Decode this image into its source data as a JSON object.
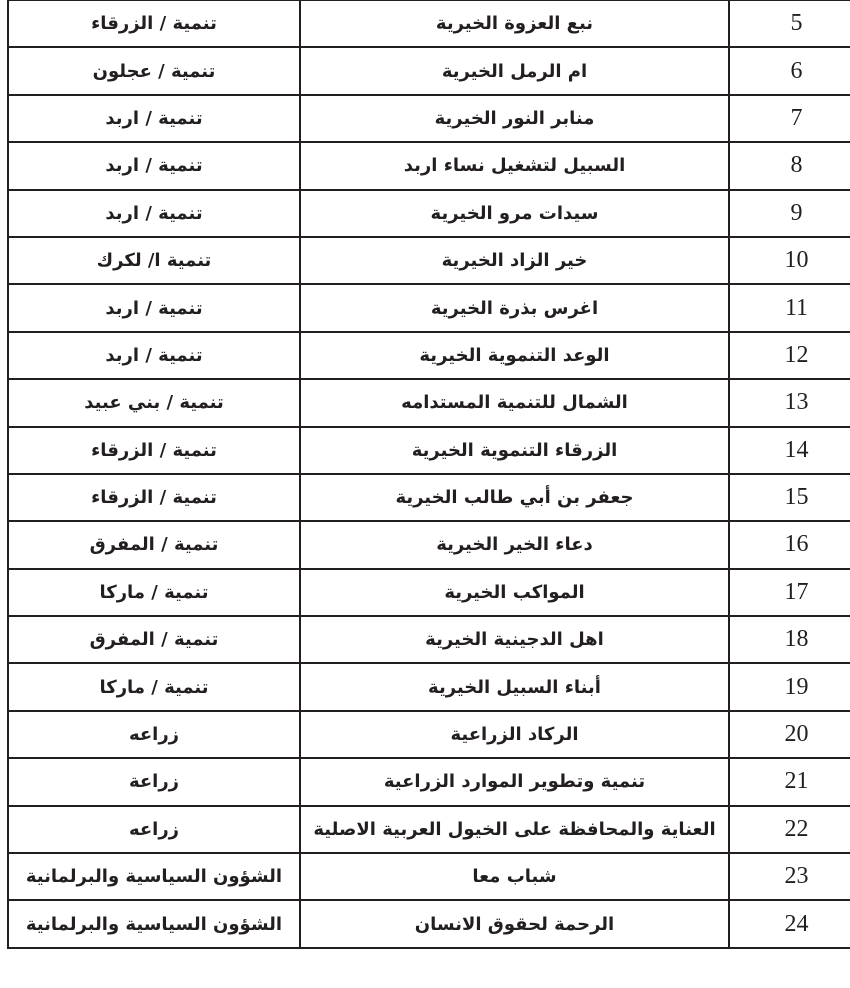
{
  "table": {
    "rows": [
      {
        "num": "5",
        "name": "نبع العزوة الخيرية",
        "category": "تنمية / الزرقاء"
      },
      {
        "num": "6",
        "name": "ام الرمل الخيرية",
        "category": "تنمية / عجلون"
      },
      {
        "num": "7",
        "name": "منابر النور الخيرية",
        "category": "تنمية / اربد"
      },
      {
        "num": "8",
        "name": "السبيل لتشغيل نساء اربد",
        "category": "تنمية / اربد"
      },
      {
        "num": "9",
        "name": "سيدات مرو الخيرية",
        "category": "تنمية / اربد"
      },
      {
        "num": "10",
        "name": "خير الزاد الخيرية",
        "category": "تنمية ا/ لكرك"
      },
      {
        "num": "11",
        "name": "اغرس بذرة الخيرية",
        "category": "تنمية / اربد"
      },
      {
        "num": "12",
        "name": "الوعد التنموية الخيرية",
        "category": "تنمية / اربد"
      },
      {
        "num": "13",
        "name": "الشمال للتنمية المستدامه",
        "category": "تنمية / بني عبيد"
      },
      {
        "num": "14",
        "name": "الزرقاء التنموية الخيرية",
        "category": "تنمية / الزرقاء"
      },
      {
        "num": "15",
        "name": "جعفر بن أبي طالب الخيرية",
        "category": "تنمية / الزرقاء"
      },
      {
        "num": "16",
        "name": "دعاء الخير الخيرية",
        "category": "تنمية / المفرق"
      },
      {
        "num": "17",
        "name": "المواكب الخيرية",
        "category": "تنمية / ماركا"
      },
      {
        "num": "18",
        "name": "اهل الدجينية الخيرية",
        "category": "تنمية / المفرق"
      },
      {
        "num": "19",
        "name": "أبناء السبيل الخيرية",
        "category": "تنمية / ماركا"
      },
      {
        "num": "20",
        "name": "الركاد الزراعية",
        "category": "زراعه"
      },
      {
        "num": "21",
        "name": "تنمية وتطوير الموارد الزراعية",
        "category": "زراعة"
      },
      {
        "num": "22",
        "name": "العناية والمحافظة على الخيول العربية الاصلية",
        "category": "زراعه"
      },
      {
        "num": "23",
        "name": "شباب معا",
        "category": "الشؤون السياسية والبرلمانية"
      },
      {
        "num": "24",
        "name": "الرحمة لحقوق الانسان",
        "category": "الشؤون السياسية والبرلمانية"
      }
    ]
  }
}
